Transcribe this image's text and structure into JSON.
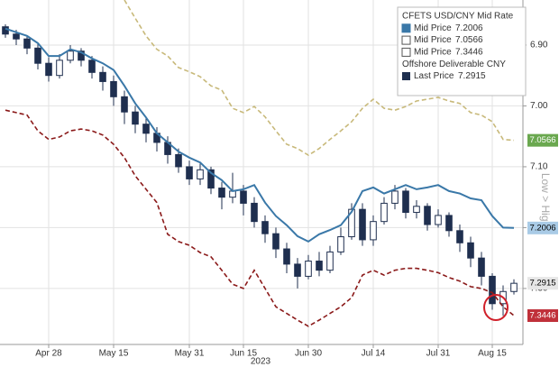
{
  "chart_data": {
    "type": "candlestick",
    "xlabel": "2023",
    "ylabel": "Low > High",
    "categories": [
      null,
      null,
      null,
      null,
      "Apr 28",
      null,
      null,
      null,
      null,
      null,
      "May 15",
      null,
      null,
      null,
      null,
      null,
      null,
      "May 31",
      null,
      null,
      null,
      null,
      "Jun 15",
      null,
      null,
      null,
      null,
      null,
      "Jun 30",
      null,
      null,
      null,
      null,
      null,
      "Jul 14",
      null,
      null,
      null,
      null,
      null,
      "Jul 31",
      null,
      null,
      null,
      null,
      "Aug 15",
      null,
      null
    ],
    "ylim": [
      6.826,
      7.392
    ],
    "inverted": true,
    "grid": true,
    "yticks": [
      {
        "value": 6.9,
        "label": "6.90"
      },
      {
        "value": 7.0,
        "label": "7.00"
      },
      {
        "value": 7.1,
        "label": "7.10"
      },
      {
        "value": 7.2,
        "label": "7.20"
      },
      {
        "value": 7.3,
        "label": "7.30"
      }
    ],
    "legend_groups": [
      "CFETS USD/CNY Mid Rate",
      "Offshore Deliverable CNY"
    ],
    "series": [
      {
        "name": "Mid Price",
        "color": "#3a78a8",
        "dash": false,
        "tag_color": "#a9cbe6",
        "values": [
          6.873,
          6.879,
          6.885,
          6.897,
          6.918,
          6.918,
          6.907,
          6.912,
          6.922,
          6.93,
          6.941,
          6.967,
          6.996,
          7.019,
          7.045,
          7.06,
          7.075,
          7.085,
          7.093,
          7.11,
          7.122,
          7.14,
          7.137,
          7.13,
          7.159,
          7.181,
          7.196,
          7.214,
          7.223,
          7.211,
          7.204,
          7.196,
          7.174,
          7.14,
          7.134,
          7.144,
          7.137,
          7.13,
          7.137,
          7.134,
          7.13,
          7.14,
          7.144,
          7.152,
          7.155,
          7.181,
          7.2,
          7.2006
        ]
      },
      {
        "name": "Mid Price",
        "color": "#c8b97a",
        "dash": true,
        "tag_color": "#6aa84f",
        "values": [
          null,
          null,
          null,
          null,
          null,
          null,
          null,
          null,
          null,
          null,
          null,
          6.826,
          6.856,
          6.885,
          6.907,
          6.918,
          6.937,
          6.944,
          6.952,
          6.967,
          6.974,
          7.004,
          7.011,
          7.001,
          7.018,
          7.041,
          7.063,
          7.07,
          7.081,
          7.07,
          7.055,
          7.041,
          7.026,
          7.004,
          6.989,
          7.004,
          7.007,
          7.001,
          6.992,
          6.989,
          6.986,
          6.992,
          6.996,
          7.011,
          7.015,
          7.026,
          7.055,
          7.0566
        ]
      },
      {
        "name": "Mid Price",
        "color": "#8b1a1a",
        "dash": true,
        "tag_color": "#c0303a",
        "values": [
          7.007,
          7.011,
          7.015,
          7.041,
          7.055,
          7.051,
          7.041,
          7.038,
          7.041,
          7.048,
          7.063,
          7.085,
          7.115,
          7.137,
          7.159,
          7.211,
          7.223,
          7.229,
          7.241,
          7.248,
          7.27,
          7.293,
          7.3,
          7.27,
          7.3,
          7.33,
          7.341,
          7.352,
          7.362,
          7.352,
          7.341,
          7.33,
          7.315,
          7.278,
          7.27,
          7.278,
          7.27,
          7.267,
          7.267,
          7.27,
          7.274,
          7.282,
          7.288,
          7.297,
          7.3,
          7.307,
          7.33,
          7.3446
        ]
      }
    ],
    "candles": {
      "name": "Last Price",
      "color": "#1f2f4f",
      "tag_color": "#e6e6e6",
      "open": [
        6.87,
        6.882,
        6.89,
        6.905,
        6.93,
        6.95,
        6.925,
        6.91,
        6.925,
        6.945,
        6.96,
        6.985,
        7.01,
        7.03,
        7.045,
        7.06,
        7.08,
        7.1,
        7.12,
        7.105,
        7.135,
        7.15,
        7.14,
        7.16,
        7.19,
        7.21,
        7.235,
        7.26,
        7.28,
        7.255,
        7.27,
        7.24,
        7.215,
        7.17,
        7.22,
        7.19,
        7.16,
        7.14,
        7.175,
        7.165,
        7.195,
        7.18,
        7.205,
        7.225,
        7.25,
        7.28,
        7.325,
        7.305
      ],
      "high": [
        6.888,
        6.9,
        6.915,
        6.94,
        6.96,
        6.955,
        6.93,
        6.935,
        6.955,
        6.975,
        7.0,
        7.03,
        7.045,
        7.06,
        7.075,
        7.095,
        7.11,
        7.13,
        7.13,
        7.145,
        7.17,
        7.16,
        7.18,
        7.2,
        7.225,
        7.25,
        7.275,
        7.3,
        7.285,
        7.28,
        7.275,
        7.245,
        7.22,
        7.23,
        7.23,
        7.195,
        7.17,
        7.185,
        7.185,
        7.205,
        7.2,
        7.215,
        7.24,
        7.265,
        7.295,
        7.335,
        7.345,
        7.31
      ],
      "low": [
        6.866,
        6.875,
        6.885,
        6.898,
        6.92,
        6.915,
        6.9,
        6.905,
        6.918,
        6.935,
        6.95,
        6.975,
        7.0,
        7.02,
        7.035,
        7.05,
        7.07,
        7.09,
        7.095,
        7.1,
        7.125,
        7.11,
        7.13,
        7.15,
        7.18,
        7.2,
        7.225,
        7.25,
        7.245,
        7.24,
        7.23,
        7.2,
        7.16,
        7.16,
        7.18,
        7.15,
        7.13,
        7.135,
        7.155,
        7.16,
        7.17,
        7.175,
        7.195,
        7.215,
        7.24,
        7.275,
        7.295,
        7.285
      ],
      "close": [
        6.882,
        6.89,
        6.905,
        6.93,
        6.95,
        6.925,
        6.91,
        6.925,
        6.945,
        6.96,
        6.985,
        7.01,
        7.03,
        7.045,
        7.06,
        7.08,
        7.1,
        7.12,
        7.105,
        7.135,
        7.15,
        7.14,
        7.16,
        7.19,
        7.21,
        7.235,
        7.26,
        7.28,
        7.255,
        7.27,
        7.24,
        7.215,
        7.17,
        7.22,
        7.19,
        7.16,
        7.14,
        7.175,
        7.165,
        7.195,
        7.18,
        7.205,
        7.225,
        7.25,
        7.28,
        7.325,
        7.305,
        7.2915
      ]
    }
  }
}
